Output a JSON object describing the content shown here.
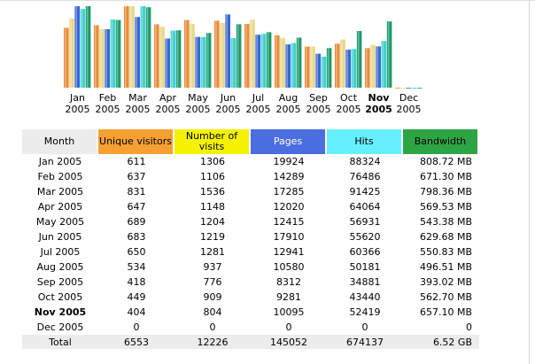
{
  "chart_data": {
    "type": "bar",
    "categories": [
      "Jan 2005",
      "Feb 2005",
      "Mar 2005",
      "Apr 2005",
      "May 2005",
      "Jun 2005",
      "Jul 2005",
      "Aug 2005",
      "Sep 2005",
      "Oct 2005",
      "Nov 2005",
      "Dec 2005"
    ],
    "month_labels": [
      {
        "m": "Jan",
        "y": "2005"
      },
      {
        "m": "Feb",
        "y": "2005"
      },
      {
        "m": "Mar",
        "y": "2005"
      },
      {
        "m": "Apr",
        "y": "2005"
      },
      {
        "m": "May",
        "y": "2005"
      },
      {
        "m": "Jun",
        "y": "2005"
      },
      {
        "m": "Jul",
        "y": "2005"
      },
      {
        "m": "Aug",
        "y": "2005"
      },
      {
        "m": "Sep",
        "y": "2005"
      },
      {
        "m": "Oct",
        "y": "2005"
      },
      {
        "m": "Nov",
        "y": "2005"
      },
      {
        "m": "Dec",
        "y": "2005"
      }
    ],
    "current_month_index": 10,
    "series": [
      {
        "name": "Unique visitors",
        "color": "#e88b3a",
        "values": [
          611,
          637,
          831,
          647,
          689,
          683,
          650,
          534,
          418,
          449,
          404,
          0
        ]
      },
      {
        "name": "Number of visits",
        "color": "#e8d889",
        "values": [
          1306,
          1106,
          1536,
          1148,
          1204,
          1219,
          1281,
          937,
          776,
          909,
          804,
          0
        ]
      },
      {
        "name": "Pages",
        "color": "#3a66d6",
        "values": [
          19924,
          14289,
          17285,
          12020,
          12415,
          17910,
          12941,
          10580,
          8312,
          9281,
          10095,
          0
        ]
      },
      {
        "name": "Hits",
        "color": "#3fd0d0",
        "values": [
          88324,
          76486,
          91425,
          64064,
          56931,
          55620,
          60366,
          50181,
          34881,
          43440,
          52419,
          0
        ]
      },
      {
        "name": "Bandwidth",
        "color": "#1d9a6c",
        "values": [
          808.72,
          671.3,
          798.36,
          569.53,
          543.38,
          629.68,
          550.83,
          496.51,
          393.02,
          562.7,
          657.1,
          0
        ]
      }
    ]
  },
  "table": {
    "headers": {
      "month": "Month",
      "unique_visitors": "Unique visitors",
      "visits": "Number of visits",
      "pages": "Pages",
      "hits": "Hits",
      "bandwidth": "Bandwidth"
    },
    "rows": [
      {
        "month": "Jan 2005",
        "uv": "611",
        "visits": "1306",
        "pages": "19924",
        "hits": "88324",
        "bw": "808.72 MB"
      },
      {
        "month": "Feb 2005",
        "uv": "637",
        "visits": "1106",
        "pages": "14289",
        "hits": "76486",
        "bw": "671.30 MB"
      },
      {
        "month": "Mar 2005",
        "uv": "831",
        "visits": "1536",
        "pages": "17285",
        "hits": "91425",
        "bw": "798.36 MB"
      },
      {
        "month": "Apr 2005",
        "uv": "647",
        "visits": "1148",
        "pages": "12020",
        "hits": "64064",
        "bw": "569.53 MB"
      },
      {
        "month": "May 2005",
        "uv": "689",
        "visits": "1204",
        "pages": "12415",
        "hits": "56931",
        "bw": "543.38 MB"
      },
      {
        "month": "Jun 2005",
        "uv": "683",
        "visits": "1219",
        "pages": "17910",
        "hits": "55620",
        "bw": "629.68 MB"
      },
      {
        "month": "Jul 2005",
        "uv": "650",
        "visits": "1281",
        "pages": "12941",
        "hits": "60366",
        "bw": "550.83 MB"
      },
      {
        "month": "Aug 2005",
        "uv": "534",
        "visits": "937",
        "pages": "10580",
        "hits": "50181",
        "bw": "496.51 MB"
      },
      {
        "month": "Sep 2005",
        "uv": "418",
        "visits": "776",
        "pages": "8312",
        "hits": "34881",
        "bw": "393.02 MB"
      },
      {
        "month": "Oct 2005",
        "uv": "449",
        "visits": "909",
        "pages": "9281",
        "hits": "43440",
        "bw": "562.70 MB"
      },
      {
        "month": "Nov 2005",
        "uv": "404",
        "visits": "804",
        "pages": "10095",
        "hits": "52419",
        "bw": "657.10 MB"
      },
      {
        "month": "Dec 2005",
        "uv": "0",
        "visits": "0",
        "pages": "0",
        "hits": "0",
        "bw": "0"
      }
    ],
    "total": {
      "month": "Total",
      "uv": "6553",
      "visits": "12226",
      "pages": "145052",
      "hits": "674137",
      "bw": "6.52 GB"
    }
  }
}
